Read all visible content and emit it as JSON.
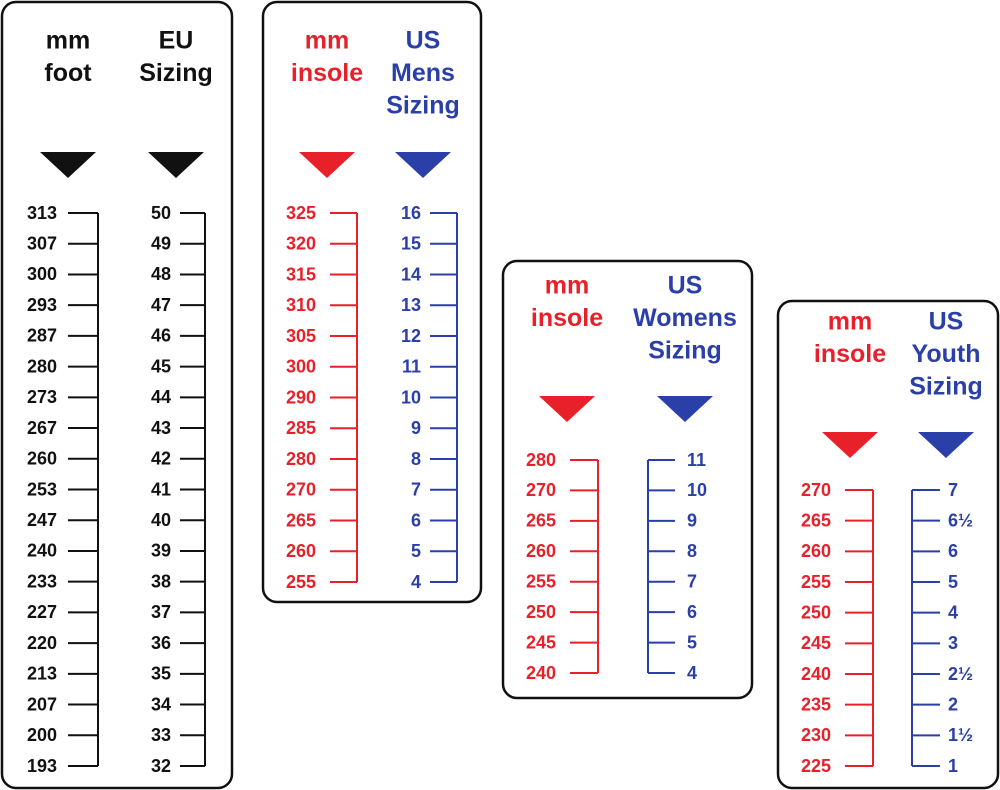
{
  "panels": [
    {
      "columns": [
        {
          "header": [
            "mm",
            "foot"
          ],
          "color": "#111111",
          "labels": [
            "313",
            "307",
            "300",
            "293",
            "287",
            "280",
            "273",
            "267",
            "260",
            "253",
            "247",
            "240",
            "233",
            "227",
            "220",
            "213",
            "207",
            "200",
            "193"
          ]
        },
        {
          "header": [
            "EU",
            "Sizing"
          ],
          "color": "#111111",
          "labels": [
            "50",
            "49",
            "48",
            "47",
            "46",
            "45",
            "44",
            "43",
            "42",
            "41",
            "40",
            "39",
            "38",
            "37",
            "36",
            "35",
            "34",
            "33",
            "32"
          ]
        }
      ]
    },
    {
      "columns": [
        {
          "header": [
            "mm",
            "insole"
          ],
          "color": "#e8202a",
          "labels": [
            "325",
            "320",
            "315",
            "310",
            "305",
            "300",
            "290",
            "285",
            "280",
            "270",
            "265",
            "260",
            "255"
          ]
        },
        {
          "header": [
            "US",
            "Mens",
            "Sizing"
          ],
          "color": "#2b3fa8",
          "labels": [
            "16",
            "15",
            "14",
            "13",
            "12",
            "11",
            "10",
            "9",
            "8",
            "7",
            "6",
            "5",
            "4"
          ]
        }
      ]
    },
    {
      "columns": [
        {
          "header": [
            "mm",
            "insole"
          ],
          "color": "#e8202a",
          "labels": [
            "280",
            "270",
            "265",
            "260",
            "255",
            "250",
            "245",
            "240"
          ]
        },
        {
          "header": [
            "US",
            "Womens",
            "Sizing"
          ],
          "color": "#2b3fa8",
          "labels": [
            "11",
            "10",
            "9",
            "8",
            "7",
            "6",
            "5",
            "4"
          ]
        }
      ]
    },
    {
      "columns": [
        {
          "header": [
            "mm",
            "insole"
          ],
          "color": "#e8202a",
          "labels": [
            "270",
            "265",
            "260",
            "255",
            "250",
            "245",
            "240",
            "235",
            "230",
            "225"
          ]
        },
        {
          "header": [
            "US",
            "Youth",
            "Sizing"
          ],
          "color": "#2b3fa8",
          "labels": [
            "7",
            "6½",
            "6",
            "5",
            "4",
            "3",
            "2½",
            "2",
            "1½",
            "1"
          ]
        }
      ]
    }
  ]
}
